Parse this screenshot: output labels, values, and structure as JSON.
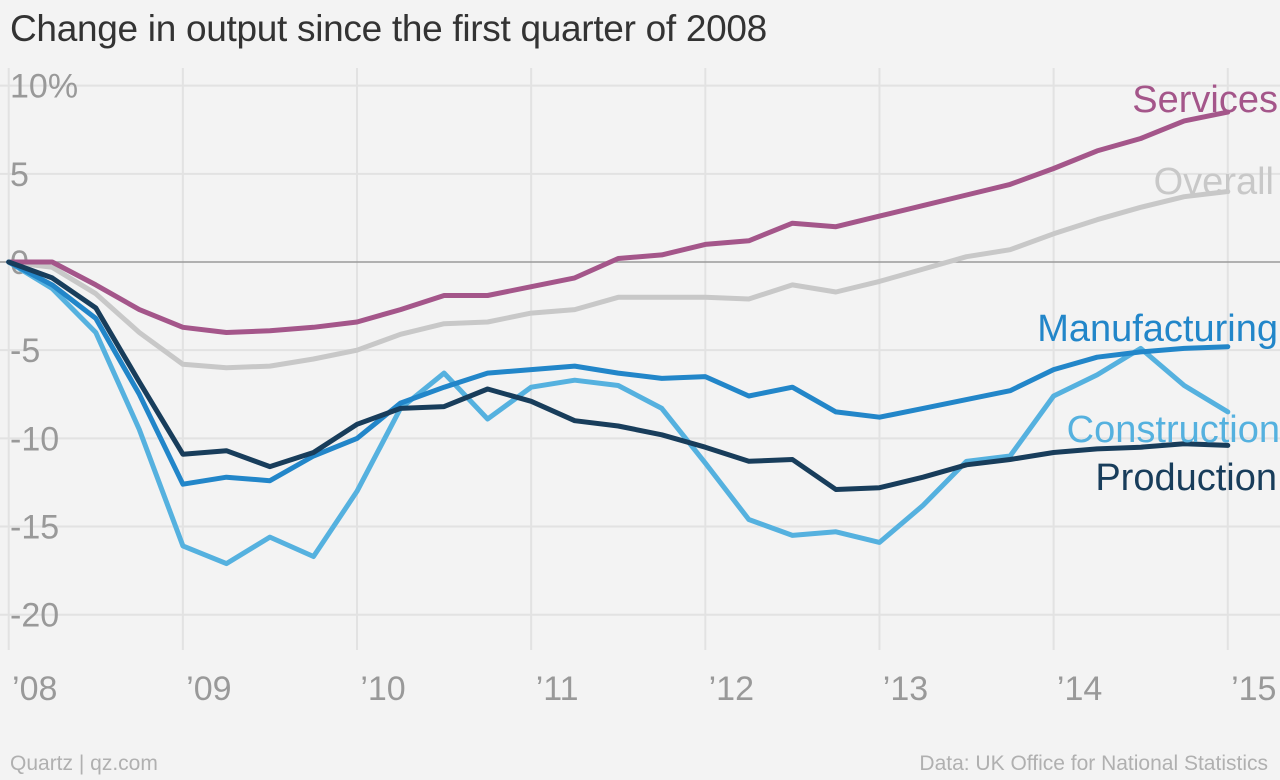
{
  "title": "Change in output since the first quarter of 2008",
  "footer": {
    "left": "Quartz | qz.com",
    "right": "Data: UK Office for National Statistics"
  },
  "colors": {
    "background": "#f3f3f3",
    "grid": "#e2e2e2",
    "zero_line": "#9a9a9a",
    "services": "#a4568a",
    "overall": "#c8c8c8",
    "manufacturing": "#2286c9",
    "construction": "#55b1df",
    "production": "#183d5b"
  },
  "chart_data": {
    "type": "line",
    "title": "Change in output since the first quarter of 2008",
    "xlabel": "",
    "ylabel": "",
    "x": [
      2008.0,
      2008.25,
      2008.5,
      2008.75,
      2009.0,
      2009.25,
      2009.5,
      2009.75,
      2010.0,
      2010.25,
      2010.5,
      2010.75,
      2011.0,
      2011.25,
      2011.5,
      2011.75,
      2012.0,
      2012.25,
      2012.5,
      2012.75,
      2013.0,
      2013.25,
      2013.5,
      2013.75,
      2014.0,
      2014.25,
      2014.5,
      2014.75,
      2015.0
    ],
    "xlim": [
      2007.95,
      2015.3
    ],
    "ylim": [
      -22,
      11
    ],
    "x_ticks": [
      2008,
      2009,
      2010,
      2011,
      2012,
      2013,
      2014,
      2015
    ],
    "x_tick_labels": [
      "’08",
      "’09",
      "’10",
      "’11",
      "’12",
      "’13",
      "’14",
      "’15"
    ],
    "y_ticks": [
      10,
      5,
      0,
      -5,
      -10,
      -15,
      -20
    ],
    "y_tick_labels": [
      "10%",
      "5",
      "0",
      "-5",
      "-10",
      "-15",
      "-20"
    ],
    "grid": true,
    "series": [
      {
        "name": "Services",
        "key": "services",
        "values": [
          0,
          0,
          -1.3,
          -2.7,
          -3.7,
          -4.0,
          -3.9,
          -3.7,
          -3.4,
          -2.7,
          -1.9,
          -1.9,
          -1.4,
          -0.9,
          0.2,
          0.4,
          1.0,
          1.2,
          2.2,
          2.0,
          2.6,
          3.2,
          3.8,
          4.4,
          5.3,
          6.3,
          7.0,
          8.0,
          8.5
        ]
      },
      {
        "name": "Overall",
        "key": "overall",
        "values": [
          0,
          -0.3,
          -1.8,
          -4.0,
          -5.8,
          -6.0,
          -5.9,
          -5.5,
          -5.0,
          -4.1,
          -3.5,
          -3.4,
          -2.9,
          -2.7,
          -2.0,
          -2.0,
          -2.0,
          -2.1,
          -1.3,
          -1.7,
          -1.1,
          -0.4,
          0.3,
          0.7,
          1.6,
          2.4,
          3.1,
          3.7,
          4.0
        ]
      },
      {
        "name": "Manufacturing",
        "key": "manufacturing",
        "values": [
          0,
          -1.3,
          -3.2,
          -7.5,
          -12.6,
          -12.2,
          -12.4,
          -11.0,
          -10.0,
          -8.0,
          -7.1,
          -6.3,
          -6.1,
          -5.9,
          -6.3,
          -6.6,
          -6.5,
          -7.6,
          -7.1,
          -8.5,
          -8.8,
          -8.3,
          -7.8,
          -7.3,
          -6.1,
          -5.4,
          -5.1,
          -4.9,
          -4.8
        ]
      },
      {
        "name": "Construction",
        "key": "construction",
        "values": [
          0,
          -1.5,
          -4.0,
          -9.5,
          -16.1,
          -17.1,
          -15.6,
          -16.7,
          -13.0,
          -8.3,
          -6.3,
          -8.9,
          -7.1,
          -6.7,
          -7.0,
          -8.3,
          -11.4,
          -14.6,
          -15.5,
          -15.3,
          -15.9,
          -13.8,
          -11.3,
          -11.0,
          -7.6,
          -6.4,
          -4.9,
          -7.0,
          -8.5
        ]
      },
      {
        "name": "Production",
        "key": "production",
        "values": [
          0,
          -0.9,
          -2.6,
          -6.8,
          -10.9,
          -10.7,
          -11.6,
          -10.8,
          -9.2,
          -8.3,
          -8.2,
          -7.2,
          -7.9,
          -9.0,
          -9.3,
          -9.8,
          -10.5,
          -11.3,
          -11.2,
          -12.9,
          -12.8,
          -12.2,
          -11.5,
          -11.2,
          -10.8,
          -10.6,
          -10.5,
          -10.3,
          -10.4
        ]
      }
    ]
  }
}
